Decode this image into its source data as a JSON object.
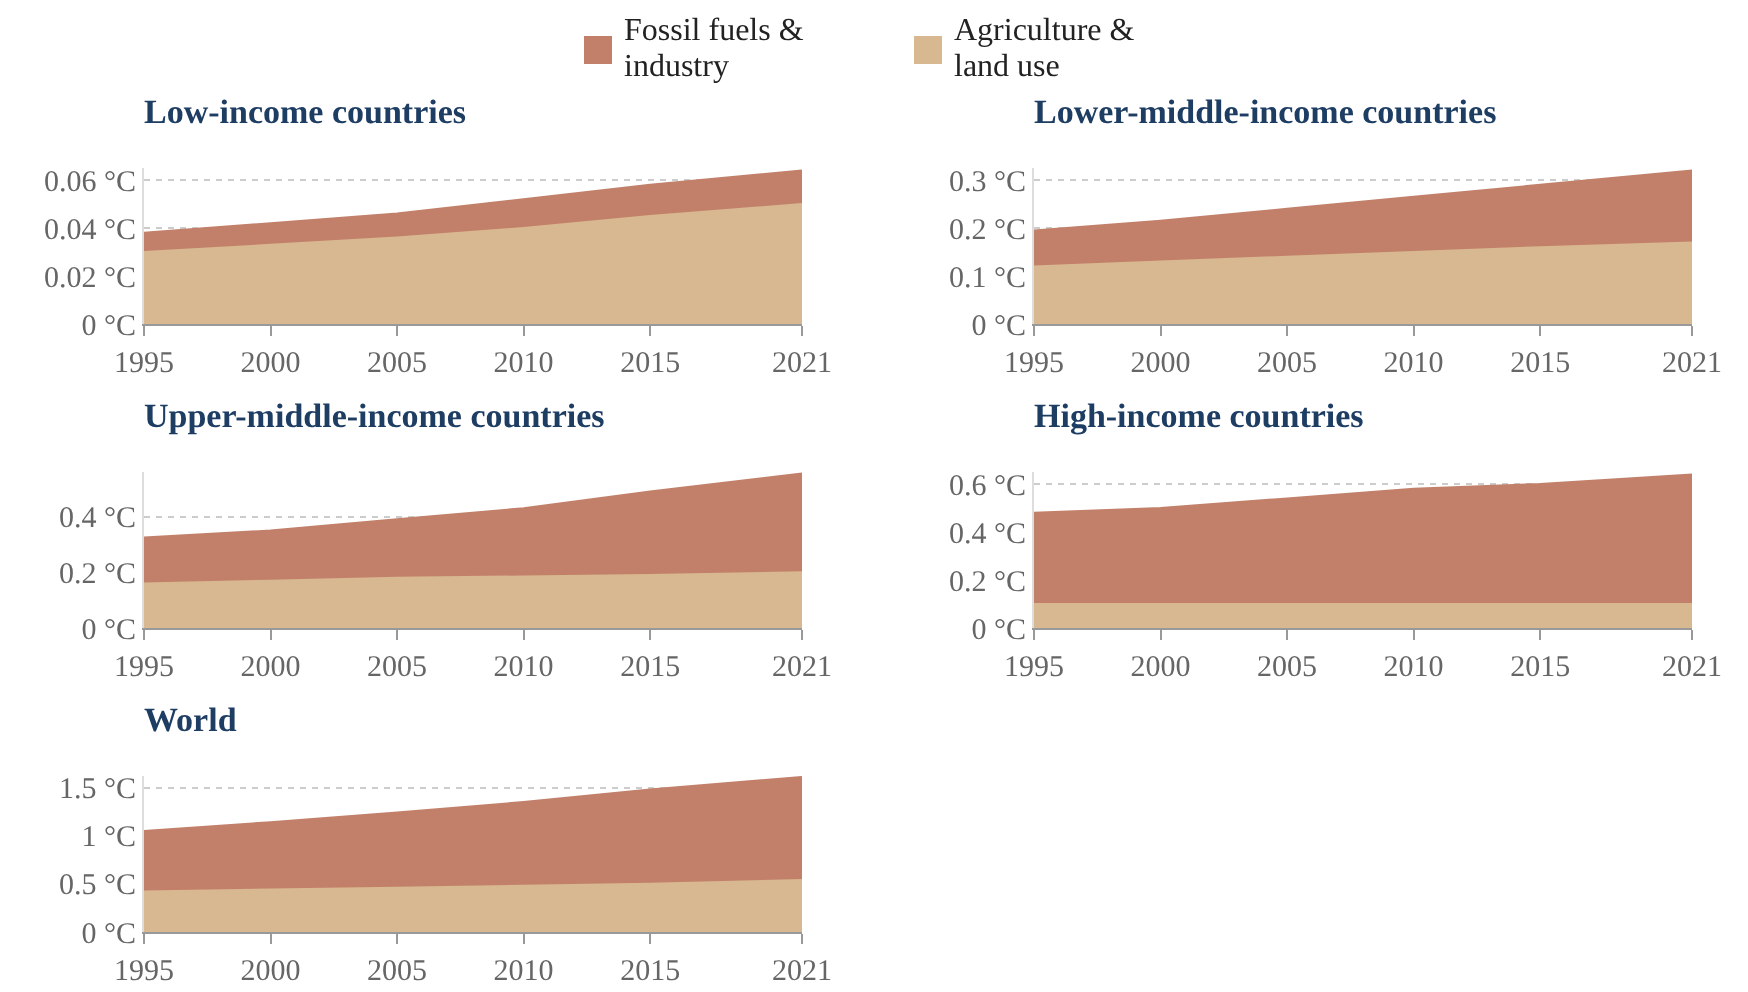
{
  "chart_data": [
    {
      "type": "area",
      "title": "Low-income countries",
      "stacked": true,
      "legend": "top",
      "grid": "y",
      "x": [
        1995,
        2000,
        2005,
        2010,
        2015,
        2021
      ],
      "xlim": [
        1995,
        2021
      ],
      "xticks": [
        1995,
        2000,
        2005,
        2010,
        2015,
        2021
      ],
      "ylim": [
        0,
        0.065
      ],
      "yticks": [
        {
          "value": 0,
          "label": "0 °C"
        },
        {
          "value": 0.02,
          "label": "0.02 °C"
        },
        {
          "value": 0.04,
          "label": "0.04 °C"
        },
        {
          "value": 0.06,
          "label": "0.06 °C"
        }
      ],
      "series": [
        {
          "name": "Agriculture & land use",
          "color": "#d8b890",
          "values": [
            0.03,
            0.033,
            0.036,
            0.04,
            0.045,
            0.05
          ]
        },
        {
          "name": "Fossil fuels & industry",
          "color": "#c2806a",
          "values": [
            0.008,
            0.009,
            0.01,
            0.012,
            0.013,
            0.014
          ]
        }
      ]
    },
    {
      "type": "area",
      "title": "Lower-middle-income countries",
      "stacked": true,
      "grid": "y",
      "x": [
        1995,
        2000,
        2005,
        2010,
        2015,
        2021
      ],
      "xlim": [
        1995,
        2021
      ],
      "xticks": [
        1995,
        2000,
        2005,
        2010,
        2015,
        2021
      ],
      "ylim": [
        0,
        0.325
      ],
      "yticks": [
        {
          "value": 0,
          "label": "0 °C"
        },
        {
          "value": 0.1,
          "label": "0.1 °C"
        },
        {
          "value": 0.2,
          "label": "0.2 °C"
        },
        {
          "value": 0.3,
          "label": "0.3 °C"
        }
      ],
      "series": [
        {
          "color": "#d8b890",
          "values": [
            0.12,
            0.13,
            0.14,
            0.15,
            0.16,
            0.17
          ]
        },
        {
          "color": "#c2806a",
          "values": [
            0.075,
            0.085,
            0.1,
            0.115,
            0.13,
            0.15
          ]
        }
      ]
    },
    {
      "type": "area",
      "title": "Upper-middle-income countries",
      "stacked": true,
      "grid": "y",
      "x": [
        1995,
        2000,
        2005,
        2010,
        2015,
        2021
      ],
      "xlim": [
        1995,
        2021
      ],
      "xticks": [
        1995,
        2000,
        2005,
        2010,
        2015,
        2021
      ],
      "ylim": [
        0,
        0.56
      ],
      "yticks": [
        {
          "value": 0,
          "label": "0 °C"
        },
        {
          "value": 0.2,
          "label": "0.2 °C"
        },
        {
          "value": 0.4,
          "label": "0.4 °C"
        }
      ],
      "series": [
        {
          "color": "#d8b890",
          "values": [
            0.16,
            0.17,
            0.18,
            0.185,
            0.19,
            0.2
          ]
        },
        {
          "color": "#c2806a",
          "values": [
            0.165,
            0.18,
            0.21,
            0.245,
            0.3,
            0.355
          ]
        }
      ]
    },
    {
      "type": "area",
      "title": "High-income countries",
      "stacked": true,
      "grid": "y",
      "x": [
        1995,
        2000,
        2005,
        2010,
        2015,
        2021
      ],
      "xlim": [
        1995,
        2021
      ],
      "xticks": [
        1995,
        2000,
        2005,
        2010,
        2015,
        2021
      ],
      "ylim": [
        0,
        0.65
      ],
      "yticks": [
        {
          "value": 0,
          "label": "0 °C"
        },
        {
          "value": 0.2,
          "label": "0.2 °C"
        },
        {
          "value": 0.4,
          "label": "0.4 °C"
        },
        {
          "value": 0.6,
          "label": "0.6 °C"
        }
      ],
      "series": [
        {
          "color": "#d8b890",
          "values": [
            0.1,
            0.1,
            0.1,
            0.1,
            0.1,
            0.1
          ]
        },
        {
          "color": "#c2806a",
          "values": [
            0.38,
            0.4,
            0.44,
            0.48,
            0.5,
            0.54
          ]
        }
      ]
    },
    {
      "type": "area",
      "title": "World",
      "stacked": true,
      "grid": "y",
      "x": [
        1995,
        2000,
        2005,
        2010,
        2015,
        2021
      ],
      "xlim": [
        1995,
        2021
      ],
      "xticks": [
        1995,
        2000,
        2005,
        2010,
        2015,
        2021
      ],
      "ylim": [
        0,
        1.62
      ],
      "yticks": [
        {
          "value": 0,
          "label": "0 °C"
        },
        {
          "value": 0.5,
          "label": "0.5 °C"
        },
        {
          "value": 1,
          "label": "1 °C"
        },
        {
          "value": 1.5,
          "label": "1.5 °C"
        }
      ],
      "series": [
        {
          "color": "#d8b890",
          "values": [
            0.42,
            0.44,
            0.46,
            0.48,
            0.5,
            0.54
          ]
        },
        {
          "color": "#c2806a",
          "values": [
            0.63,
            0.7,
            0.78,
            0.87,
            0.98,
            1.07
          ]
        }
      ]
    }
  ]
}
